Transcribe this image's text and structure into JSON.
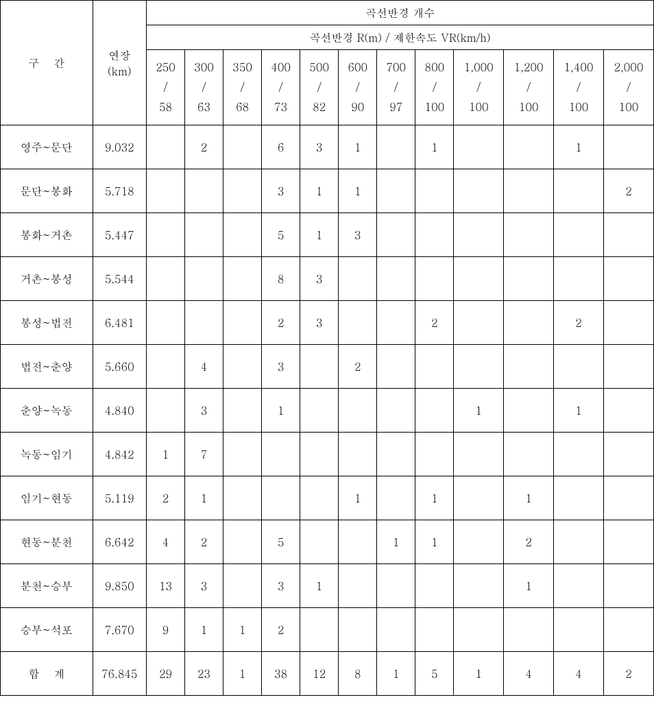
{
  "header": {
    "section": "구    간",
    "length": "연장\n(km)",
    "curve_count": "곡선반경 개수",
    "curve_sub": "곡선반경 R(m) / 제한속도 VR(km/h)",
    "radii": [
      "250\n/\n58",
      "300\n/\n63",
      "350\n/\n68",
      "400\n/\n73",
      "500\n/\n82",
      "600\n/\n90",
      "700\n/\n97",
      "800\n/\n100",
      "1,000\n/\n100",
      "1,200\n/\n100",
      "1,400\n/\n100",
      "2,000\n/\n100"
    ]
  },
  "rows": [
    {
      "section": "영주~문단",
      "length": "9.032",
      "c": [
        "",
        "2",
        "",
        "6",
        "3",
        "1",
        "",
        "1",
        "",
        "",
        "1",
        ""
      ]
    },
    {
      "section": "문단~봉화",
      "length": "5.718",
      "c": [
        "",
        "",
        "",
        "3",
        "1",
        "1",
        "",
        "",
        "",
        "",
        "",
        "2"
      ]
    },
    {
      "section": "봉화~거촌",
      "length": "5.447",
      "c": [
        "",
        "",
        "",
        "5",
        "1",
        "3",
        "",
        "",
        "",
        "",
        "",
        ""
      ]
    },
    {
      "section": "거촌~봉성",
      "length": "5.544",
      "c": [
        "",
        "",
        "",
        "8",
        "3",
        "",
        "",
        "",
        "",
        "",
        "",
        ""
      ]
    },
    {
      "section": "봉성~법전",
      "length": "6.481",
      "c": [
        "",
        "",
        "",
        "2",
        "3",
        "",
        "",
        "2",
        "",
        "",
        "2",
        ""
      ]
    },
    {
      "section": "법전~춘양",
      "length": "5.660",
      "c": [
        "",
        "4",
        "",
        "3",
        "",
        "2",
        "",
        "",
        "",
        "",
        "",
        ""
      ]
    },
    {
      "section": "춘양~녹동",
      "length": "4.840",
      "c": [
        "",
        "3",
        "",
        "1",
        "",
        "",
        "",
        "",
        "1",
        "",
        "1",
        ""
      ]
    },
    {
      "section": "녹동~임기",
      "length": "4.842",
      "c": [
        "1",
        "7",
        "",
        "",
        "",
        "",
        "",
        "",
        "",
        "",
        "",
        ""
      ]
    },
    {
      "section": "임기~현동",
      "length": "5.119",
      "c": [
        "2",
        "1",
        "",
        "",
        "",
        "1",
        "",
        "1",
        "",
        "1",
        "",
        ""
      ]
    },
    {
      "section": "현동~분천",
      "length": "6.642",
      "c": [
        "4",
        "2",
        "",
        "5",
        "",
        "",
        "1",
        "1",
        "",
        "2",
        "",
        ""
      ]
    },
    {
      "section": "분천~승부",
      "length": "9.850",
      "c": [
        "13",
        "3",
        "",
        "3",
        "1",
        "",
        "",
        "",
        "",
        "1",
        "",
        ""
      ]
    },
    {
      "section": "승부~석포",
      "length": "7.670",
      "c": [
        "9",
        "1",
        "1",
        "2",
        "",
        "",
        "",
        "",
        "",
        "",
        "",
        ""
      ]
    }
  ],
  "total": {
    "label": "합    계",
    "length": "76.845",
    "c": [
      "29",
      "23",
      "1",
      "38",
      "12",
      "8",
      "1",
      "5",
      "1",
      "4",
      "4",
      "2"
    ]
  }
}
